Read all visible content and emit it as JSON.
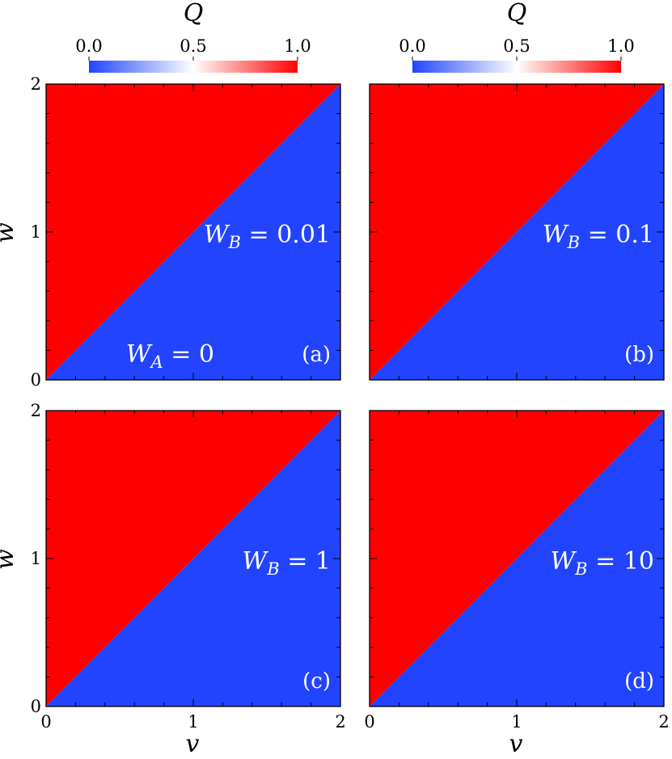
{
  "chart_data": {
    "type": "heatmap",
    "colorbar": {
      "label": "Q",
      "min": 0.0,
      "max": 1.0,
      "ticks": [
        "0.0",
        "0.5",
        "1.0"
      ],
      "colors": {
        "low": "#2244ff",
        "mid": "#ffffff",
        "high": "#ff0000"
      }
    },
    "colors": {
      "upper_region": "#ff0000",
      "lower_region": "#2244ff"
    },
    "xlabel": "v",
    "ylabel": "w",
    "xlim": [
      0,
      2
    ],
    "ylim": [
      0,
      2
    ],
    "x_ticks": [
      "0",
      "1",
      "2"
    ],
    "y_ticks": [
      "0",
      "1",
      "2"
    ],
    "boundary": "w = v",
    "region_values": {
      "w_greater_than_v": 1.0,
      "w_less_than_v": 0.0
    },
    "panels": [
      {
        "tag": "(a)",
        "annotations": [
          "W_B = 0.01",
          "W_A = 0"
        ]
      },
      {
        "tag": "(b)",
        "annotations": [
          "W_B = 0.1"
        ]
      },
      {
        "tag": "(c)",
        "annotations": [
          "W_B = 1"
        ]
      },
      {
        "tag": "(d)",
        "annotations": [
          "W_B = 10"
        ]
      }
    ]
  }
}
